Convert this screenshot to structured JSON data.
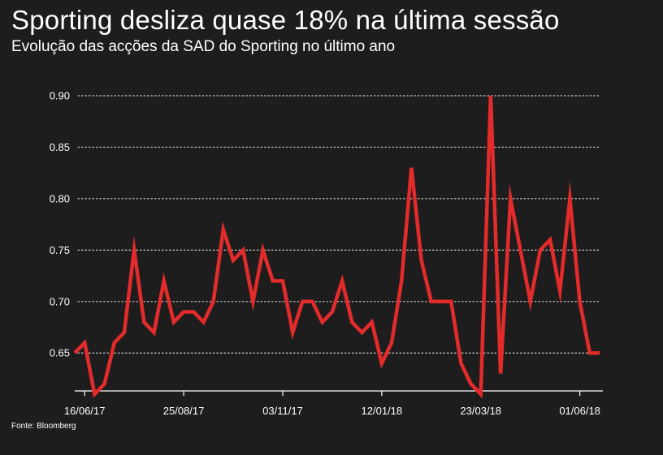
{
  "title": "Sporting desliza quase 18% na última sessão",
  "subtitle": "Evolução das acções da SAD do Sporting no último ano",
  "source": "Fonte: Bloomberg",
  "colors": {
    "background": "#1e1d1d",
    "line": "#e32b2b",
    "grid": "#cfcfcf",
    "text": "#ffffff"
  },
  "chart_data": {
    "type": "line",
    "title": "Sporting desliza quase 18% na última sessão",
    "subtitle": "Evolução das acções da SAD do Sporting no último ano",
    "xlabel": "",
    "ylabel": "",
    "ylim": [
      0.61,
      0.9
    ],
    "yticks": [
      0.65,
      0.7,
      0.75,
      0.8,
      0.85,
      0.9
    ],
    "ytick_labels": [
      "0.65",
      "0.70",
      "0.75",
      "0.80",
      "0.85",
      "0.90"
    ],
    "xticks": [
      {
        "label": "16/06/17",
        "week": 1
      },
      {
        "label": "25/08/17",
        "week": 11
      },
      {
        "label": "03/11/17",
        "week": 21
      },
      {
        "label": "12/01/18",
        "week": 31
      },
      {
        "label": "23/03/18",
        "week": 41
      },
      {
        "label": "01/06/18",
        "week": 51
      }
    ],
    "grid": "horizontal-dotted",
    "series": [
      {
        "values": [
          0.65,
          0.66,
          0.61,
          0.62,
          0.66,
          0.67,
          0.75,
          0.68,
          0.67,
          0.72,
          0.68,
          0.69,
          0.69,
          0.68,
          0.7,
          0.77,
          0.74,
          0.75,
          0.7,
          0.75,
          0.72,
          0.72,
          0.67,
          0.7,
          0.7,
          0.68,
          0.69,
          0.72,
          0.68,
          0.67,
          0.68,
          0.64,
          0.66,
          0.72,
          0.83,
          0.74,
          0.7,
          0.7,
          0.7,
          0.64,
          0.62,
          0.61,
          0.9,
          0.63,
          0.8,
          0.75,
          0.7,
          0.75,
          0.76,
          0.71,
          0.8,
          0.7,
          0.65,
          0.65
        ]
      }
    ]
  }
}
